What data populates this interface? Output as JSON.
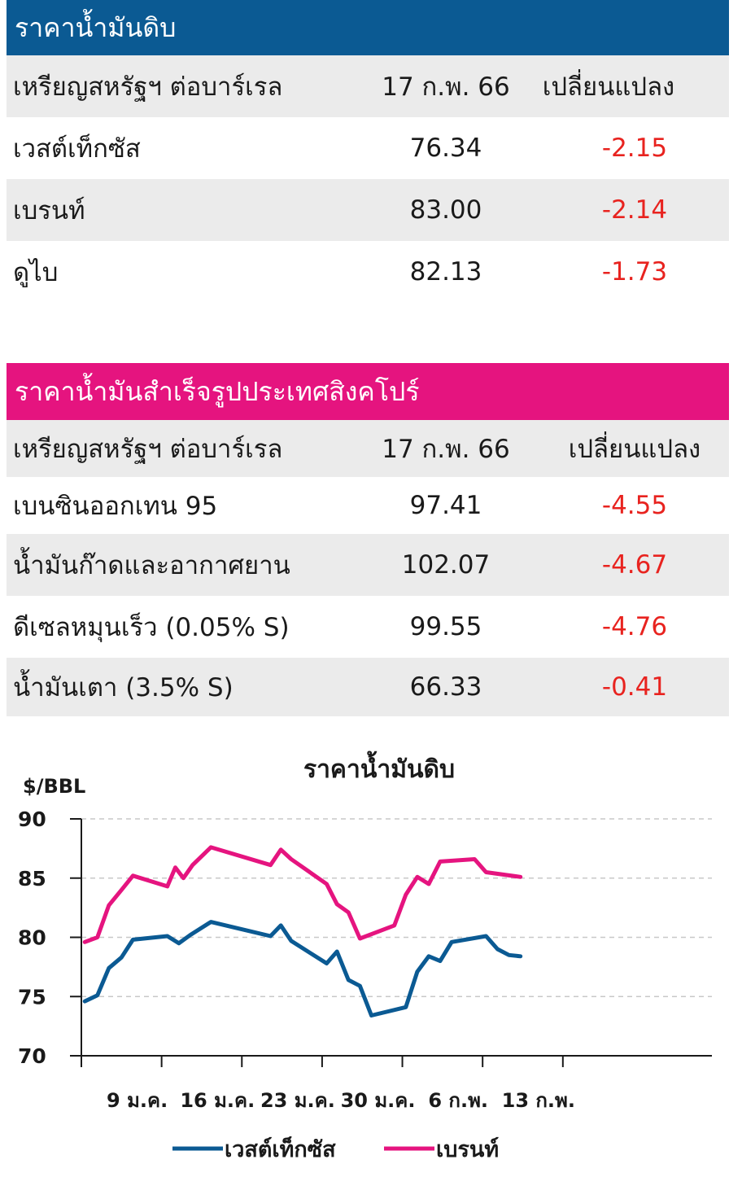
{
  "crude": {
    "title": "ราคาน้ำมันดิบ",
    "header_color": "#0b5a93",
    "columns": [
      "เหรียญสหรัฐฯ ต่อบาร์เรล",
      "17 ก.พ. 66",
      "เปลี่ยนแปลง"
    ],
    "rows": [
      {
        "name": "เวสต์เท็กซัส",
        "price": "76.34",
        "change": "-2.15"
      },
      {
        "name": "เบรนท์",
        "price": "83.00",
        "change": "-2.14"
      },
      {
        "name": "ดูไบ",
        "price": "82.13",
        "change": "-1.73"
      }
    ]
  },
  "refined": {
    "title": "ราคาน้ำมันสำเร็จรูปประเทศสิงคโปร์",
    "header_color": "#e5147f",
    "columns": [
      "เหรียญสหรัฐฯ ต่อบาร์เรล",
      "17 ก.พ. 66",
      "เปลี่ยนแปลง"
    ],
    "rows": [
      {
        "name": "เบนซินออกเทน 95",
        "price": "97.41",
        "change": "-4.55"
      },
      {
        "name": "น้ำมันก๊าดและอากาศยาน",
        "price": "102.07",
        "change": "-4.67"
      },
      {
        "name": "ดีเซลหมุนเร็ว (0.05% S)",
        "price": "99.55",
        "change": "-4.76"
      },
      {
        "name": "น้ำมันเตา (3.5% S)",
        "price": "66.33",
        "change": "-0.41"
      }
    ]
  },
  "chart_data": {
    "type": "line",
    "title": "ราคาน้ำมันดิบ",
    "ylabel": "$/BBL",
    "ylim": [
      70,
      90
    ],
    "yticks": [
      70,
      75,
      80,
      85,
      90
    ],
    "xlim": [
      0,
      55
    ],
    "xticks": [
      {
        "x": 0,
        "label": ""
      },
      {
        "x": 7,
        "label": "9 ม.ค."
      },
      {
        "x": 14,
        "label": "16 ม.ค."
      },
      {
        "x": 21,
        "label": "23 ม.ค."
      },
      {
        "x": 28,
        "label": "30 ม.ค."
      },
      {
        "x": 35,
        "label": "6 ก.พ."
      },
      {
        "x": 42,
        "label": "13 ก.พ."
      }
    ],
    "x_unit_note": "",
    "grid": "horizontal-dashed",
    "legend_position": "bottom",
    "series": [
      {
        "name": "เวสต์เท็กซัส",
        "color": "#0b5a93",
        "points": [
          [
            0.3,
            74.6
          ],
          [
            1.4,
            75.1
          ],
          [
            2.4,
            77.4
          ],
          [
            3.5,
            78.3
          ],
          [
            4.5,
            79.8
          ],
          [
            7.5,
            80.1
          ],
          [
            8.5,
            79.5
          ],
          [
            9.5,
            80.2
          ],
          [
            11.3,
            81.3
          ],
          [
            16.5,
            80.1
          ],
          [
            17.4,
            81.0
          ],
          [
            18.3,
            79.7
          ],
          [
            21.4,
            77.8
          ],
          [
            22.3,
            78.8
          ],
          [
            23.3,
            76.4
          ],
          [
            24.3,
            75.9
          ],
          [
            25.3,
            73.4
          ],
          [
            28.3,
            74.1
          ],
          [
            29.3,
            77.1
          ],
          [
            30.3,
            78.4
          ],
          [
            31.3,
            78.0
          ],
          [
            32.3,
            79.6
          ],
          [
            35.3,
            80.1
          ],
          [
            36.3,
            79.0
          ],
          [
            37.3,
            78.5
          ],
          [
            38.3,
            78.4
          ]
        ]
      },
      {
        "name": "เบรนท์",
        "color": "#e5147f",
        "points": [
          [
            0.3,
            79.6
          ],
          [
            1.4,
            80.0
          ],
          [
            2.4,
            82.7
          ],
          [
            3.5,
            84.0
          ],
          [
            4.5,
            85.2
          ],
          [
            7.5,
            84.3
          ],
          [
            8.2,
            85.9
          ],
          [
            8.9,
            85.0
          ],
          [
            9.7,
            86.1
          ],
          [
            11.3,
            87.6
          ],
          [
            16.5,
            86.1
          ],
          [
            17.4,
            87.4
          ],
          [
            18.3,
            86.6
          ],
          [
            21.4,
            84.5
          ],
          [
            22.3,
            82.8
          ],
          [
            23.3,
            82.1
          ],
          [
            24.3,
            79.9
          ],
          [
            27.3,
            81.0
          ],
          [
            28.3,
            83.6
          ],
          [
            29.3,
            85.1
          ],
          [
            30.3,
            84.5
          ],
          [
            31.3,
            86.4
          ],
          [
            34.3,
            86.6
          ],
          [
            35.3,
            85.5
          ],
          [
            38.3,
            85.1
          ]
        ]
      }
    ]
  }
}
